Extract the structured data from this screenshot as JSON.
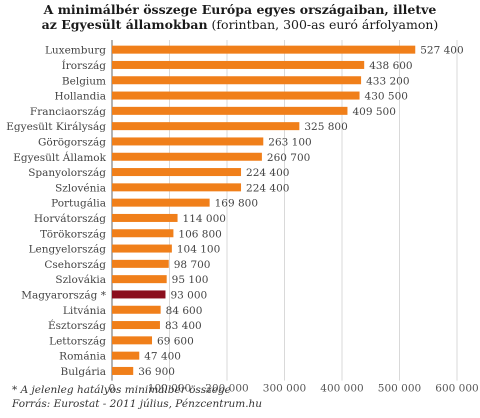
{
  "title": {
    "line1": "A minimálbér összege Európa egyes országaiban, illetve",
    "line2_bold": "az Egyesült államokban",
    "line2_normal": " (forintban, 300-as euró árfolyamon)"
  },
  "colors": {
    "bar": "#f07f1a",
    "highlight": "#8b0f1e",
    "grid": "#d9d9d9",
    "axis": "#666666"
  },
  "chart_data": {
    "type": "bar",
    "orientation": "horizontal",
    "categories": [
      "Luxemburg",
      "Írország",
      "Belgium",
      "Hollandia",
      "Franciaország",
      "Egyesült Királyság",
      "Görögország",
      "Egyesült Államok",
      "Spanyolország",
      "Szlovénia",
      "Portugália",
      "Horvátország",
      "Törökország",
      "Lengyelország",
      "Csehország",
      "Szlovákia",
      "Magyarország *",
      "Litvánia",
      "Észtország",
      "Lettország",
      "Románia",
      "Bulgária"
    ],
    "values": [
      527400,
      438600,
      433200,
      430500,
      409500,
      325800,
      263100,
      260700,
      224400,
      224400,
      169800,
      114000,
      106800,
      104100,
      98700,
      95100,
      93000,
      84600,
      83400,
      69600,
      47400,
      36900
    ],
    "value_labels": [
      "527 400",
      "438 600",
      "433 200",
      "430 500",
      "409 500",
      "325 800",
      "263 100",
      "260 700",
      "224 400",
      "224 400",
      "169 800",
      "114 000",
      "106 800",
      "104 100",
      "98 700",
      "95 100",
      "93 000",
      "84 600",
      "83 400",
      "69 600",
      "47 400",
      "36 900"
    ],
    "highlight": "Magyarország *",
    "xlim": [
      0,
      600000
    ],
    "xticks": [
      0,
      100000,
      200000,
      300000,
      400000,
      500000,
      600000
    ],
    "xtick_labels": [
      "0",
      "100 000",
      "200 000",
      "300 000",
      "400 000",
      "500 000",
      "600 000"
    ],
    "grid": true
  },
  "footnotes": {
    "note": "* A jelenleg hatályos minimálbér összege",
    "source": "Forrás: Eurostat - 2011 július, Pénzcentrum.hu"
  }
}
